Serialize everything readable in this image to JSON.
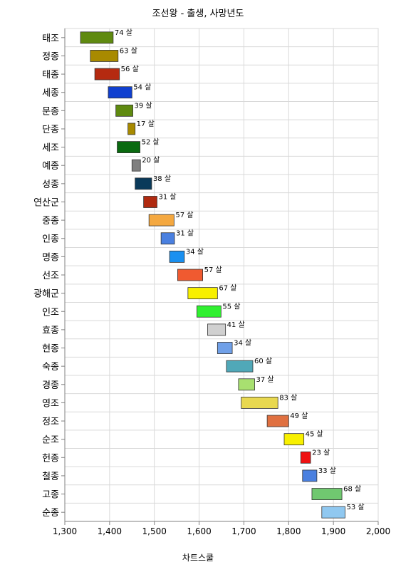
{
  "chart_data": {
    "type": "bar",
    "orientation": "horizontal-floating",
    "title": "조선왕 - 출생, 사망년도",
    "xlabel": "차트스쿨",
    "ylabel": "",
    "xlim": [
      1300,
      2000
    ],
    "xticks": [
      "1,300",
      "1,400",
      "1,500",
      "1,600",
      "1,700",
      "1,800",
      "1,900",
      "2,000"
    ],
    "grid": true,
    "legend": "none",
    "value_suffix": " 살",
    "series": [
      {
        "name": "태조",
        "start": 1335,
        "end": 1408,
        "label": 74,
        "color": "#5f8a10"
      },
      {
        "name": "정종",
        "start": 1357,
        "end": 1419,
        "label": 63,
        "color": "#a88a00"
      },
      {
        "name": "태종",
        "start": 1367,
        "end": 1422,
        "label": 56,
        "color": "#b52a10"
      },
      {
        "name": "세종",
        "start": 1397,
        "end": 1450,
        "label": 54,
        "color": "#1040d0"
      },
      {
        "name": "문종",
        "start": 1414,
        "end": 1452,
        "label": 39,
        "color": "#5f8a10"
      },
      {
        "name": "단종",
        "start": 1441,
        "end": 1457,
        "label": 17,
        "color": "#a88a00"
      },
      {
        "name": "세조",
        "start": 1417,
        "end": 1468,
        "label": 52,
        "color": "#0a6a10"
      },
      {
        "name": "예종",
        "start": 1450,
        "end": 1469,
        "label": 20,
        "color": "#808080"
      },
      {
        "name": "성종",
        "start": 1457,
        "end": 1494,
        "label": 38,
        "color": "#0a3a5a"
      },
      {
        "name": "연산군",
        "start": 1476,
        "end": 1506,
        "label": 31,
        "color": "#b02a10"
      },
      {
        "name": "중종",
        "start": 1488,
        "end": 1544,
        "label": 57,
        "color": "#f4a840"
      },
      {
        "name": "인종",
        "start": 1515,
        "end": 1545,
        "label": 31,
        "color": "#4a80e0"
      },
      {
        "name": "명종",
        "start": 1534,
        "end": 1567,
        "label": 34,
        "color": "#1a90f0"
      },
      {
        "name": "선조",
        "start": 1552,
        "end": 1608,
        "label": 57,
        "color": "#f05a30"
      },
      {
        "name": "광해군",
        "start": 1575,
        "end": 1641,
        "label": 67,
        "color": "#f8f000"
      },
      {
        "name": "인조",
        "start": 1595,
        "end": 1649,
        "label": 55,
        "color": "#30f030"
      },
      {
        "name": "효종",
        "start": 1619,
        "end": 1659,
        "label": 41,
        "color": "#d0d0d0"
      },
      {
        "name": "현종",
        "start": 1641,
        "end": 1674,
        "label": 34,
        "color": "#70a0e8"
      },
      {
        "name": "숙종",
        "start": 1661,
        "end": 1720,
        "label": 60,
        "color": "#50a8b8"
      },
      {
        "name": "경종",
        "start": 1688,
        "end": 1724,
        "label": 37,
        "color": "#a8e070"
      },
      {
        "name": "영조",
        "start": 1694,
        "end": 1776,
        "label": 83,
        "color": "#e8d850"
      },
      {
        "name": "정조",
        "start": 1752,
        "end": 1800,
        "label": 49,
        "color": "#e07040"
      },
      {
        "name": "순조",
        "start": 1790,
        "end": 1834,
        "label": 45,
        "color": "#f8f000"
      },
      {
        "name": "헌종",
        "start": 1827,
        "end": 1849,
        "label": 23,
        "color": "#f01010"
      },
      {
        "name": "철종",
        "start": 1831,
        "end": 1863,
        "label": 33,
        "color": "#4a80e0"
      },
      {
        "name": "고종",
        "start": 1852,
        "end": 1919,
        "label": 68,
        "color": "#70c870"
      },
      {
        "name": "순종",
        "start": 1874,
        "end": 1926,
        "label": 53,
        "color": "#90c8f0"
      }
    ]
  }
}
